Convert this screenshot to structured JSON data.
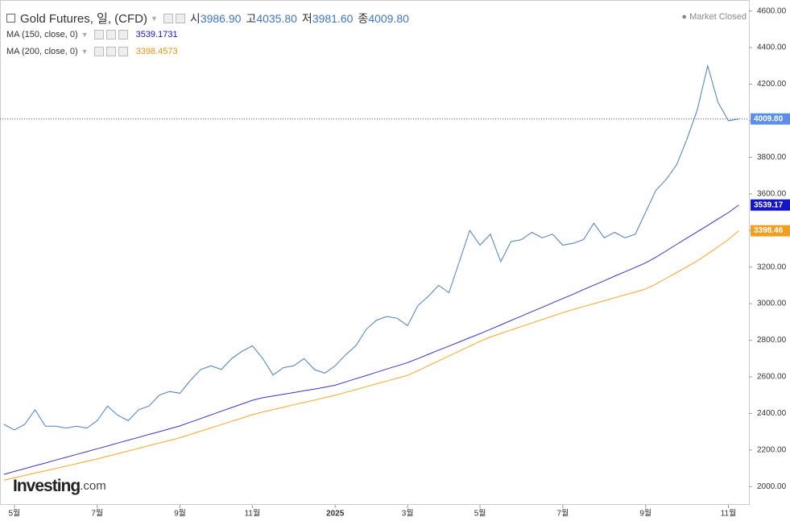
{
  "chart_data": {
    "type": "line",
    "title": "Gold Futures, 일, (CFD)",
    "ohlc": [
      {
        "name": "시",
        "value": "3986.90"
      },
      {
        "name": "고",
        "value": "4035.80"
      },
      {
        "name": "저",
        "value": "3981.60"
      },
      {
        "name": "종",
        "value": "4009.80"
      }
    ],
    "status": "Market Closed",
    "watermark": [
      "Investing",
      ".com"
    ],
    "categories": [
      null,
      "5월",
      null,
      null,
      null,
      null,
      null,
      null,
      null,
      "7월",
      null,
      null,
      null,
      null,
      null,
      null,
      null,
      "9월",
      null,
      null,
      null,
      null,
      null,
      null,
      "11월",
      null,
      null,
      null,
      null,
      null,
      null,
      null,
      "2025",
      null,
      null,
      null,
      null,
      null,
      null,
      "3월",
      null,
      null,
      null,
      null,
      null,
      null,
      "5월",
      null,
      null,
      null,
      null,
      null,
      null,
      null,
      "7월",
      null,
      null,
      null,
      null,
      null,
      null,
      null,
      "9월",
      null,
      null,
      null,
      null,
      null,
      null,
      null,
      "11월",
      null
    ],
    "series": [
      {
        "name": "Gold Futures",
        "color": "#4a7fc1",
        "tag_color": "#5b8fe8",
        "last_label": "4009.80",
        "values": [
          2340,
          2310,
          2340,
          2420,
          2330,
          2330,
          2320,
          2330,
          2320,
          2360,
          2440,
          2390,
          2360,
          2420,
          2440,
          2500,
          2520,
          2510,
          2580,
          2640,
          2660,
          2640,
          2700,
          2740,
          2770,
          2700,
          2610,
          2650,
          2660,
          2700,
          2640,
          2620,
          2660,
          2720,
          2770,
          2860,
          2910,
          2930,
          2920,
          2880,
          2990,
          3040,
          3100,
          3060,
          3230,
          3400,
          3320,
          3380,
          3230,
          3340,
          3350,
          3390,
          3360,
          3380,
          3320,
          3330,
          3350,
          3440,
          3360,
          3390,
          3360,
          3380,
          3500,
          3620,
          3680,
          3760,
          3900,
          4060,
          4300,
          4100,
          4000,
          4009.8
        ]
      },
      {
        "name": "MA (150, close, 0)",
        "color": "#3b33c8",
        "tag_color": "#1515c8",
        "last_label": "3539.17",
        "values": [
          2067,
          2083,
          2098,
          2114,
          2129,
          2145,
          2160,
          2176,
          2191,
          2207,
          2222,
          2238,
          2254,
          2269,
          2285,
          2300,
          2316,
          2332,
          2352,
          2372,
          2392,
          2412,
          2432,
          2452,
          2472,
          2486,
          2495,
          2505,
          2514,
          2524,
          2533,
          2543,
          2554,
          2572,
          2590,
          2607,
          2625,
          2643,
          2660,
          2678,
          2700,
          2723,
          2746,
          2768,
          2791,
          2814,
          2836,
          2860,
          2884,
          2908,
          2932,
          2956,
          2980,
          3004,
          3028,
          3052,
          3077,
          3101,
          3125,
          3150,
          3174,
          3198,
          3223,
          3254,
          3289,
          3324,
          3359,
          3393,
          3428,
          3463,
          3498,
          3539.1731
        ]
      },
      {
        "name": "MA (200, close, 0)",
        "color": "#f5a623",
        "tag_color": "#f0a020",
        "last_label": "3398.46",
        "values": [
          2035,
          2048,
          2061,
          2074,
          2086,
          2099,
          2112,
          2125,
          2138,
          2151,
          2166,
          2180,
          2195,
          2209,
          2224,
          2238,
          2252,
          2267,
          2285,
          2303,
          2321,
          2339,
          2357,
          2375,
          2393,
          2408,
          2421,
          2434,
          2447,
          2460,
          2473,
          2486,
          2499,
          2515,
          2530,
          2546,
          2562,
          2577,
          2593,
          2608,
          2634,
          2661,
          2687,
          2714,
          2741,
          2768,
          2794,
          2818,
          2837,
          2856,
          2875,
          2894,
          2913,
          2932,
          2951,
          2968,
          2984,
          3000,
          3016,
          3032,
          3048,
          3064,
          3080,
          3107,
          3139,
          3170,
          3202,
          3234,
          3272,
          3311,
          3351,
          3398.4573
        ]
      }
    ],
    "ylim": [
      1900,
      4660
    ],
    "yticks": [
      {
        "value": 2000,
        "label": "2000.00"
      },
      {
        "value": 2200,
        "label": "2200.00"
      },
      {
        "value": 2400,
        "label": "2400.00"
      },
      {
        "value": 2600,
        "label": "2600.00"
      },
      {
        "value": 2800,
        "label": "2800.00"
      },
      {
        "value": 3000,
        "label": "3000.00"
      },
      {
        "value": 3200,
        "label": "3200.00"
      },
      {
        "value": 3400,
        "label": "3400.00"
      },
      {
        "value": 3600,
        "label": "3600.00"
      },
      {
        "value": 3800,
        "label": "3800.00"
      },
      {
        "value": 4000,
        "label": "4000.00"
      },
      {
        "value": 4200,
        "label": "4200.00"
      },
      {
        "value": 4400,
        "label": "4400.00"
      },
      {
        "value": 4600,
        "label": "4600.00"
      }
    ],
    "grid": false
  }
}
